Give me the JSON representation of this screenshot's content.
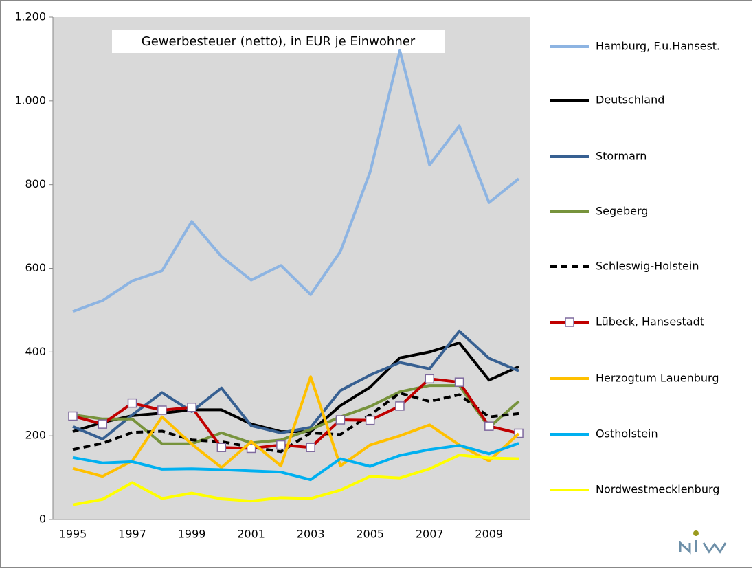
{
  "chart_data": {
    "type": "line",
    "title": "Gewerbesteuer (netto), in EUR je Einwohner",
    "categories": [
      1995,
      null,
      1997,
      null,
      1999,
      null,
      2001,
      null,
      2003,
      null,
      2005,
      null,
      2007,
      null,
      2009,
      null
    ],
    "ylim": [
      0,
      1200
    ],
    "yticks": [
      0,
      200,
      400,
      600,
      800,
      {
        "value": 1000,
        "label": "1.000"
      },
      {
        "value": 1200,
        "label": "1.200"
      }
    ],
    "grid": false,
    "legend": "right",
    "series": [
      {
        "name": "Hamburg,  F.u.Hansest.",
        "color": "#8db4e2",
        "values": [
          497,
          523,
          570,
          594,
          712,
          628,
          572,
          607,
          537,
          640,
          830,
          1120,
          847,
          940,
          757,
          814
        ]
      },
      {
        "name": "Deutschland",
        "color": "#000000",
        "values": [
          210,
          232,
          248,
          254,
          262,
          262,
          228,
          210,
          210,
          272,
          316,
          386,
          400,
          422,
          333,
          365
        ]
      },
      {
        "name": "Stormarn",
        "color": "#376092",
        "values": [
          222,
          192,
          250,
          303,
          258,
          314,
          224,
          207,
          220,
          308,
          345,
          375,
          360,
          450,
          385,
          355
        ]
      },
      {
        "name": "Segeberg",
        "color": "#77933c",
        "values": [
          250,
          240,
          240,
          181,
          181,
          207,
          183,
          190,
          215,
          245,
          270,
          305,
          320,
          320,
          220,
          282
        ]
      },
      {
        "name": "Schleswig-Holstein",
        "color": "#000000",
        "dashed": true,
        "values": [
          167,
          182,
          208,
          211,
          190,
          186,
          173,
          162,
          207,
          203,
          250,
          302,
          282,
          298,
          245,
          253
        ]
      },
      {
        "name": "Lübeck,  Hansestadt",
        "color": "#c00000",
        "marker": "square",
        "values": [
          247,
          228,
          278,
          261,
          268,
          172,
          170,
          178,
          172,
          238,
          237,
          271,
          336,
          328,
          223,
          206
        ]
      },
      {
        "name": "Herzogtum  Lauenburg",
        "color": "#ffc000",
        "values": [
          122,
          103,
          140,
          245,
          180,
          124,
          186,
          128,
          341,
          128,
          178,
          200,
          226,
          178,
          140,
          205
        ]
      },
      {
        "name": "Ostholstein",
        "color": "#00b0f0",
        "values": [
          148,
          135,
          138,
          120,
          121,
          119,
          116,
          113,
          95,
          145,
          127,
          153,
          167,
          177,
          157,
          182
        ]
      },
      {
        "name": "Nordwestmecklenburg",
        "color": "#ffff00",
        "values": [
          35,
          48,
          88,
          50,
          63,
          49,
          44,
          52,
          50,
          70,
          103,
          99,
          121,
          154,
          147,
          145
        ]
      }
    ]
  }
}
